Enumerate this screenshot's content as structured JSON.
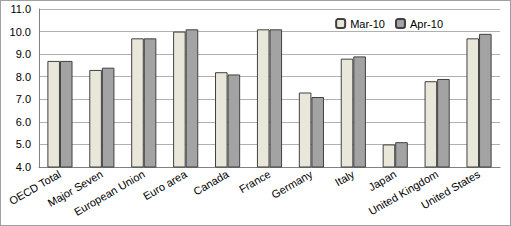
{
  "chart_data": {
    "type": "bar",
    "categories": [
      "OECD Total",
      "Major Seven",
      "European Union",
      "Euro area",
      "Canada",
      "France",
      "Germany",
      "Italy",
      "Japan",
      "United Kingdom",
      "United States"
    ],
    "series": [
      {
        "name": "Mar-10",
        "color": "#e9e7da",
        "values": [
          8.7,
          8.3,
          9.7,
          10.0,
          8.2,
          10.1,
          7.3,
          8.8,
          5.0,
          7.8,
          9.7
        ]
      },
      {
        "name": "Apr-10",
        "color": "#a3a3a3",
        "values": [
          8.7,
          8.4,
          9.7,
          10.1,
          8.1,
          10.1,
          7.1,
          8.9,
          5.1,
          7.9,
          9.9
        ]
      }
    ],
    "ylim": [
      4,
      11
    ],
    "yticks": [
      {
        "value": 4,
        "label": "4.0"
      },
      {
        "value": 5,
        "label": "5.0"
      },
      {
        "value": 6,
        "label": "6.0"
      },
      {
        "value": 7,
        "label": "7.0"
      },
      {
        "value": 8,
        "label": "8.0"
      },
      {
        "value": 9,
        "label": "9.0"
      },
      {
        "value": 10,
        "label": "10.0"
      },
      {
        "value": 11,
        "label": "11.0"
      }
    ],
    "grid": true,
    "legend": "upper right"
  }
}
